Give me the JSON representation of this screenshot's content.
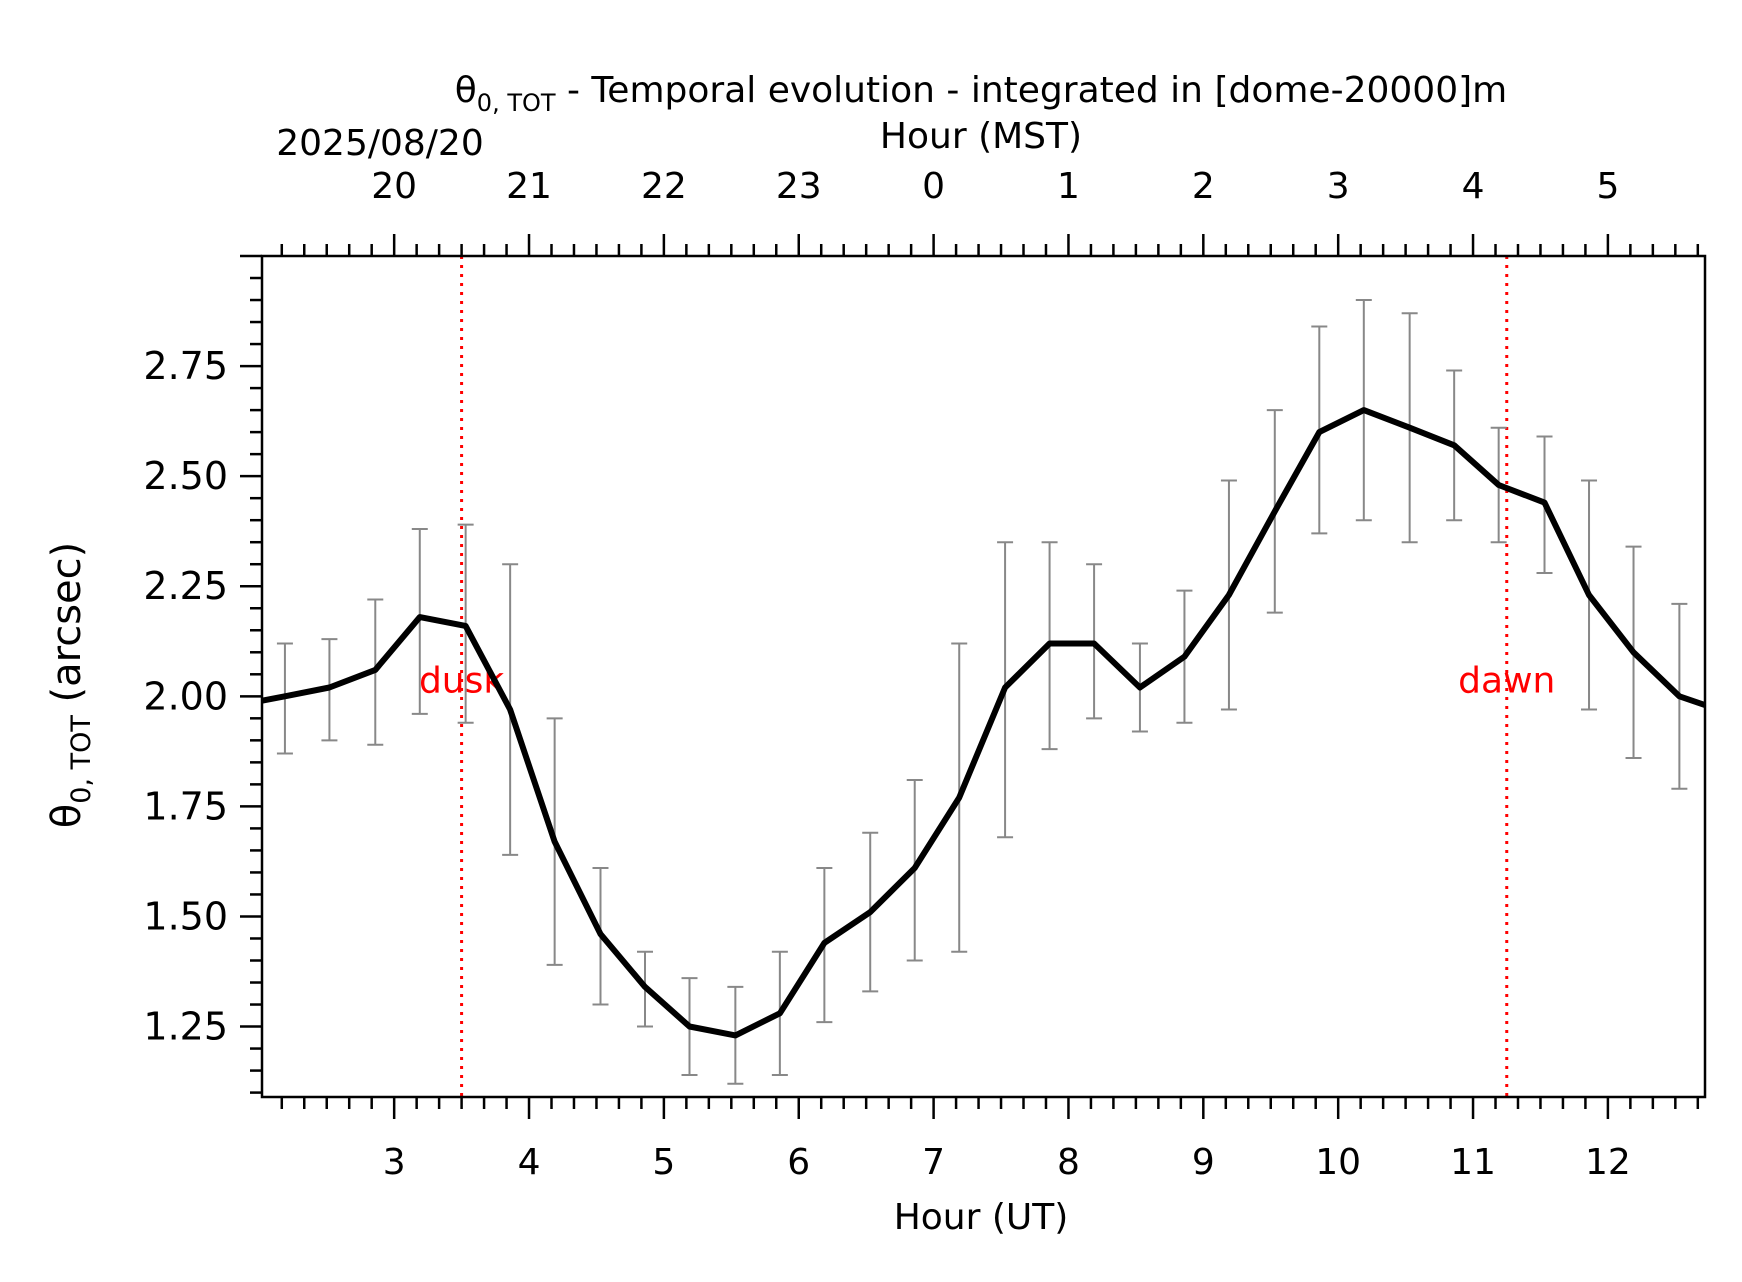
{
  "chart_data": {
    "type": "line",
    "title_main": "θ",
    "title_sub": "0, TOT",
    "title_rest": " - Temporal evolution - integrated in [dome-20000]m",
    "xlabel": "Hour (UT)",
    "top_xlabel": "Hour (MST)",
    "date": "2025/08/20",
    "ylabel_main": "θ",
    "ylabel_sub": "0, TOT",
    "ylabel_rest": " (arcsec)",
    "xlim": [
      2.02,
      12.72
    ],
    "ylim": [
      1.09,
      3.0
    ],
    "x_ticks": [
      3,
      4,
      5,
      6,
      7,
      8,
      9,
      10,
      11,
      12
    ],
    "top_ticks": [
      {
        "ut": 3,
        "label": "20"
      },
      {
        "ut": 4,
        "label": "21"
      },
      {
        "ut": 5,
        "label": "22"
      },
      {
        "ut": 6,
        "label": "23"
      },
      {
        "ut": 7,
        "label": "0"
      },
      {
        "ut": 8,
        "label": "1"
      },
      {
        "ut": 9,
        "label": "2"
      },
      {
        "ut": 10,
        "label": "3"
      },
      {
        "ut": 11,
        "label": "4"
      },
      {
        "ut": 12,
        "label": "5"
      }
    ],
    "y_ticks": [
      "1.25",
      "1.50",
      "1.75",
      "2.00",
      "2.25",
      "2.50",
      "2.75"
    ],
    "series": [
      {
        "color": "#000000",
        "x": [
          2.02,
          2.19,
          2.52,
          2.86,
          3.19,
          3.53,
          3.86,
          4.19,
          4.53,
          4.86,
          5.19,
          5.53,
          5.86,
          6.19,
          6.53,
          6.86,
          7.19,
          7.53,
          7.86,
          8.19,
          8.53,
          8.86,
          9.19,
          9.53,
          9.86,
          10.19,
          10.53,
          10.86,
          11.19,
          11.53,
          11.86,
          12.19,
          12.53,
          12.72
        ],
        "y": [
          1.99,
          2.0,
          2.02,
          2.06,
          2.18,
          2.16,
          1.97,
          1.67,
          1.46,
          1.34,
          1.25,
          1.23,
          1.28,
          1.44,
          1.51,
          1.61,
          1.77,
          2.02,
          2.12,
          2.12,
          2.02,
          2.09,
          2.23,
          2.42,
          2.6,
          2.65,
          2.61,
          2.57,
          2.48,
          2.44,
          2.23,
          2.1,
          2.0,
          1.98
        ],
        "err_x": [
          2.19,
          2.52,
          2.86,
          3.19,
          3.53,
          3.86,
          4.19,
          4.53,
          4.86,
          5.19,
          5.53,
          5.86,
          6.19,
          6.53,
          6.86,
          7.19,
          7.53,
          7.86,
          8.19,
          8.53,
          8.86,
          9.19,
          9.53,
          9.86,
          10.19,
          10.53,
          10.86,
          11.19,
          11.53,
          11.86,
          12.19,
          12.53
        ],
        "err_low": [
          1.87,
          1.9,
          1.89,
          1.96,
          1.94,
          1.64,
          1.39,
          1.3,
          1.25,
          1.14,
          1.12,
          1.14,
          1.26,
          1.33,
          1.4,
          1.42,
          1.68,
          1.88,
          1.95,
          1.92,
          1.94,
          1.97,
          2.19,
          2.37,
          2.4,
          2.35,
          2.4,
          2.35,
          2.28,
          1.97,
          1.86,
          1.79
        ],
        "err_high": [
          2.12,
          2.13,
          2.22,
          2.38,
          2.39,
          2.3,
          1.95,
          1.61,
          1.42,
          1.36,
          1.34,
          1.42,
          1.61,
          1.69,
          1.81,
          2.12,
          2.35,
          2.35,
          2.3,
          2.12,
          2.24,
          2.49,
          2.65,
          2.84,
          2.9,
          2.87,
          2.74,
          2.61,
          2.59,
          2.49,
          2.34,
          2.21
        ],
        "err_color": "#888888"
      }
    ],
    "vlines": [
      {
        "x": 3.5,
        "label": "dusk",
        "color": "#ff0000",
        "label_y": 2.04
      },
      {
        "x": 11.25,
        "label": "dawn",
        "color": "#ff0000",
        "label_y": 2.04
      }
    ],
    "grid": false
  }
}
